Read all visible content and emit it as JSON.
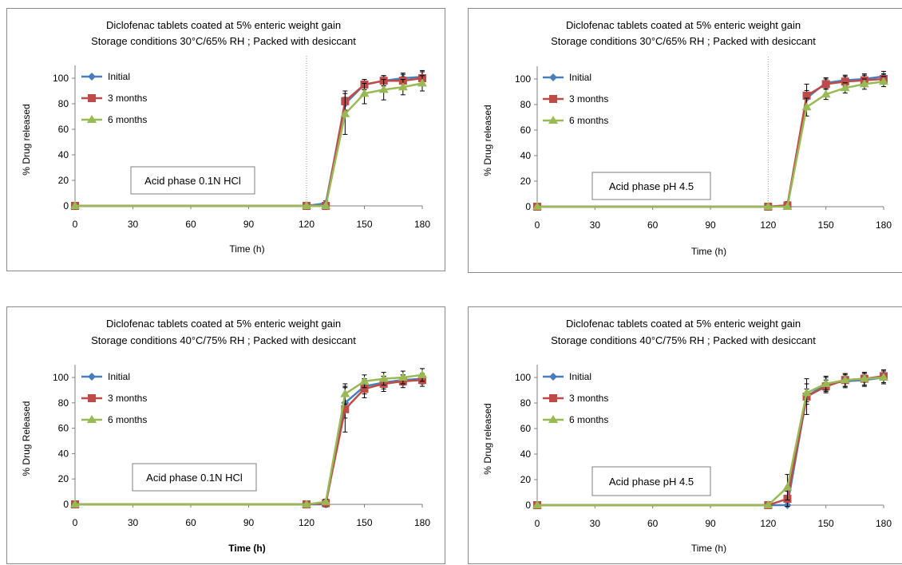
{
  "chart_data": [
    {
      "type": "line",
      "title": [
        "Diclofenac tablets coated at 5% enteric weight gain",
        "Storage conditions 30°C/65% RH ; Packed with desiccant"
      ],
      "xlabel": "Time (h)",
      "ylabel": "% Drug released",
      "xlim": [
        0,
        180
      ],
      "ylim": [
        0,
        110
      ],
      "xticks": [
        0,
        30,
        60,
        90,
        120,
        150,
        180
      ],
      "yticks": [
        0,
        20,
        40,
        60,
        80,
        100
      ],
      "annotation": "Acid phase 0.1N HCl",
      "vline_x": 120,
      "legend_position": "top-left",
      "x": [
        0,
        120,
        130,
        140,
        150,
        160,
        170,
        180
      ],
      "series": [
        {
          "name": "Initial",
          "color": "#4a7ebb",
          "marker": "diamond",
          "values": [
            0,
            0,
            2,
            80,
            95,
            98,
            100,
            101
          ],
          "errors": [
            0,
            0,
            2,
            5,
            4,
            4,
            4,
            5
          ]
        },
        {
          "name": "3 months",
          "color": "#be4b48",
          "marker": "square",
          "values": [
            0,
            0,
            0,
            82,
            95,
            98,
            98,
            100
          ],
          "errors": [
            0,
            0,
            0,
            8,
            4,
            4,
            5,
            5
          ]
        },
        {
          "name": "6 months",
          "color": "#98b954",
          "marker": "triangle",
          "values": [
            0,
            0,
            0,
            72,
            88,
            91,
            93,
            96
          ],
          "errors": [
            0,
            0,
            0,
            16,
            8,
            8,
            6,
            6
          ]
        }
      ]
    },
    {
      "type": "line",
      "title": [
        "Diclofenac tablets coated at 5% enteric weight gain",
        "Storage conditions 30°C/65% RH ; Packed with desiccant"
      ],
      "xlabel": "Time (h)",
      "ylabel": "% Drug released",
      "xlim": [
        0,
        180
      ],
      "ylim": [
        0,
        110
      ],
      "xticks": [
        0,
        30,
        60,
        90,
        120,
        150,
        180
      ],
      "yticks": [
        0,
        20,
        40,
        60,
        80,
        100
      ],
      "annotation": "Acid phase pH 4.5",
      "vline_x": 120,
      "legend_position": "top-left",
      "x": [
        0,
        120,
        130,
        140,
        150,
        160,
        170,
        180
      ],
      "series": [
        {
          "name": "Initial",
          "color": "#4a7ebb",
          "marker": "diamond",
          "values": [
            0,
            0,
            1,
            85,
            97,
            99,
            100,
            102
          ],
          "errors": [
            0,
            0,
            2,
            6,
            4,
            4,
            4,
            4
          ]
        },
        {
          "name": "3 months",
          "color": "#be4b48",
          "marker": "square",
          "values": [
            0,
            0,
            1,
            87,
            96,
            98,
            99,
            100
          ],
          "errors": [
            0,
            0,
            3,
            9,
            4,
            4,
            4,
            4
          ]
        },
        {
          "name": "6 months",
          "color": "#98b954",
          "marker": "triangle",
          "values": [
            0,
            0,
            0,
            78,
            88,
            93,
            96,
            98
          ],
          "errors": [
            0,
            0,
            0,
            7,
            4,
            4,
            4,
            4
          ]
        }
      ]
    },
    {
      "type": "line",
      "title": [
        "Diclofenac tablets coated at 5% enteric weight gain",
        "Storage conditions 40°C/75% RH ; Packed with desiccant"
      ],
      "xlabel": "Time (h)",
      "xlabel_bold": true,
      "ylabel": "% Drug Released",
      "xlim": [
        0,
        180
      ],
      "ylim": [
        0,
        110
      ],
      "xticks": [
        0,
        30,
        60,
        90,
        120,
        150,
        180
      ],
      "yticks": [
        0,
        20,
        40,
        60,
        80,
        100
      ],
      "annotation": "Acid phase 0.1N HCl",
      "legend_position": "top-left",
      "x": [
        0,
        120,
        130,
        140,
        150,
        160,
        170,
        180
      ],
      "series": [
        {
          "name": "Initial",
          "color": "#4a7ebb",
          "marker": "diamond",
          "values": [
            0,
            0,
            0,
            80,
            93,
            96,
            98,
            99
          ],
          "errors": [
            0,
            0,
            2,
            12,
            6,
            5,
            4,
            4
          ]
        },
        {
          "name": "3 months",
          "color": "#be4b48",
          "marker": "square",
          "values": [
            0,
            0,
            1,
            75,
            91,
            95,
            97,
            98
          ],
          "errors": [
            0,
            0,
            3,
            18,
            7,
            6,
            5,
            5
          ]
        },
        {
          "name": "6 months",
          "color": "#98b954",
          "marker": "triangle",
          "values": [
            0,
            0,
            2,
            87,
            97,
            99,
            100,
            102
          ],
          "errors": [
            0,
            0,
            2,
            8,
            5,
            5,
            5,
            5
          ]
        }
      ]
    },
    {
      "type": "line",
      "title": [
        "Diclofenac tablets coated at 5% enteric weight gain",
        "Storage conditions 40°C/75% RH ; Packed with desiccant"
      ],
      "xlabel": "Time (h)",
      "ylabel": "% Drug released",
      "xlim": [
        0,
        180
      ],
      "ylim": [
        0,
        110
      ],
      "xticks": [
        0,
        30,
        60,
        90,
        120,
        150,
        180
      ],
      "yticks": [
        0,
        20,
        40,
        60,
        80,
        100
      ],
      "annotation": "Acid phase pH 4.5",
      "legend_position": "top-left",
      "x": [
        0,
        120,
        130,
        140,
        150,
        160,
        170,
        180
      ],
      "series": [
        {
          "name": "Initial",
          "color": "#4a7ebb",
          "marker": "diamond",
          "values": [
            0,
            0,
            0,
            85,
            95,
            97,
            98,
            100
          ],
          "errors": [
            0,
            0,
            0,
            6,
            6,
            5,
            5,
            5
          ]
        },
        {
          "name": "3 months",
          "color": "#be4b48",
          "marker": "square",
          "values": [
            0,
            0,
            5,
            85,
            93,
            98,
            99,
            101
          ],
          "errors": [
            0,
            0,
            6,
            14,
            5,
            5,
            5,
            5
          ]
        },
        {
          "name": "6 months",
          "color": "#98b954",
          "marker": "triangle",
          "values": [
            0,
            0,
            14,
            88,
            95,
            98,
            99,
            100
          ],
          "errors": [
            0,
            0,
            10,
            7,
            5,
            5,
            5,
            5
          ]
        }
      ]
    }
  ]
}
